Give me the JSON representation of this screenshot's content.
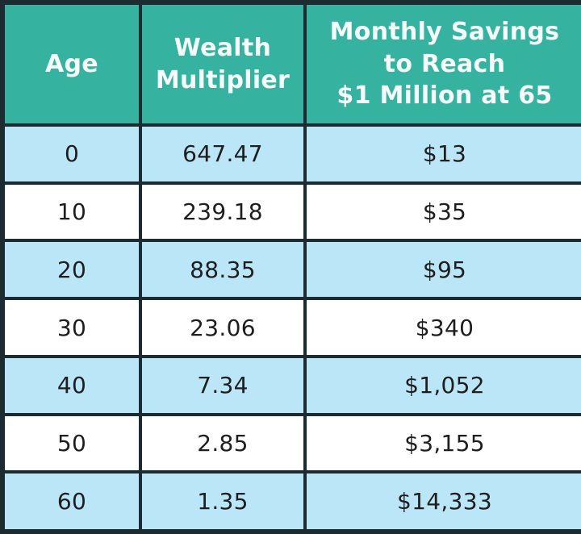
{
  "colors": {
    "header_bg": "#36b2a0",
    "header_text": "#f5fcfa",
    "row_alt_bg": "#bbe6f7",
    "row_bg": "#ffffff",
    "border": "#1b2b31",
    "cell_text": "#1e1e1e"
  },
  "table": {
    "headers": [
      {
        "label": "Age"
      },
      {
        "label": "Wealth\nMultiplier"
      },
      {
        "label": "Monthly Savings\nto Reach\n$1 Million at 65"
      }
    ],
    "rows": [
      {
        "age": "0",
        "multiplier": "647.47",
        "savings": "$13"
      },
      {
        "age": "10",
        "multiplier": "239.18",
        "savings": "$35"
      },
      {
        "age": "20",
        "multiplier": "88.35",
        "savings": "$95"
      },
      {
        "age": "30",
        "multiplier": "23.06",
        "savings": "$340"
      },
      {
        "age": "40",
        "multiplier": "7.34",
        "savings": "$1,052"
      },
      {
        "age": "50",
        "multiplier": "2.85",
        "savings": "$3,155"
      },
      {
        "age": "60",
        "multiplier": "1.35",
        "savings": "$14,333"
      }
    ]
  },
  "chart_data": {
    "type": "table",
    "columns": [
      "Age",
      "Wealth Multiplier",
      "Monthly Savings to Reach $1 Million at 65"
    ],
    "rows": [
      [
        0,
        647.47,
        "$13"
      ],
      [
        10,
        239.18,
        "$35"
      ],
      [
        20,
        88.35,
        "$95"
      ],
      [
        30,
        23.06,
        "$340"
      ],
      [
        40,
        7.34,
        "$1,052"
      ],
      [
        50,
        2.85,
        "$3,155"
      ],
      [
        60,
        1.35,
        "$14,333"
      ]
    ]
  }
}
